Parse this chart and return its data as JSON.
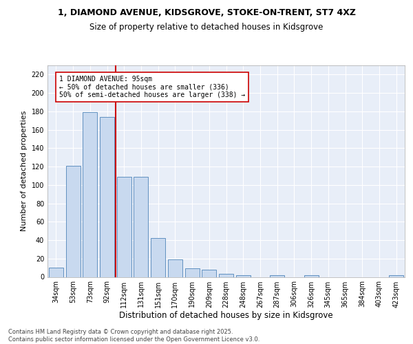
{
  "title": "1, DIAMOND AVENUE, KIDSGROVE, STOKE-ON-TRENT, ST7 4XZ",
  "subtitle": "Size of property relative to detached houses in Kidsgrove",
  "xlabel": "Distribution of detached houses by size in Kidsgrove",
  "ylabel": "Number of detached properties",
  "categories": [
    "34sqm",
    "53sqm",
    "73sqm",
    "92sqm",
    "112sqm",
    "131sqm",
    "151sqm",
    "170sqm",
    "190sqm",
    "209sqm",
    "228sqm",
    "248sqm",
    "267sqm",
    "287sqm",
    "306sqm",
    "326sqm",
    "345sqm",
    "365sqm",
    "384sqm",
    "403sqm",
    "423sqm"
  ],
  "values": [
    10,
    121,
    179,
    174,
    109,
    109,
    42,
    19,
    9,
    8,
    3,
    2,
    0,
    2,
    0,
    2,
    0,
    0,
    0,
    0,
    2
  ],
  "bar_color": "#c8d9ef",
  "bar_edge_color": "#6090c0",
  "vline_color": "#cc0000",
  "vline_x_index": 3,
  "annotation_text": "1 DIAMOND AVENUE: 95sqm\n← 50% of detached houses are smaller (336)\n50% of semi-detached houses are larger (338) →",
  "annotation_box_facecolor": "#ffffff",
  "annotation_box_edgecolor": "#cc0000",
  "ylim": [
    0,
    230
  ],
  "yticks": [
    0,
    20,
    40,
    60,
    80,
    100,
    120,
    140,
    160,
    180,
    200,
    220
  ],
  "bg_color": "#e8eef8",
  "grid_color": "#ffffff",
  "title_fontsize": 9,
  "subtitle_fontsize": 8.5,
  "ylabel_fontsize": 8,
  "xlabel_fontsize": 8.5,
  "tick_fontsize": 7,
  "footer_text": "Contains HM Land Registry data © Crown copyright and database right 2025.\nContains public sector information licensed under the Open Government Licence v3.0."
}
